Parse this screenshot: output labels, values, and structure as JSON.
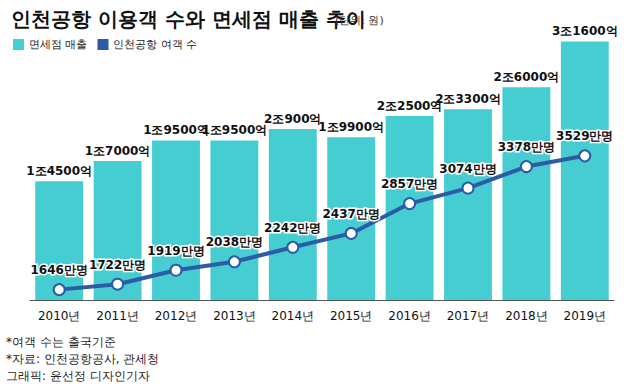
{
  "chart_data": {
    "type": "bar",
    "title": "인천공항 이용객 수와 면세점 매출 추이",
    "subtitle": "(단위: 원)",
    "annotations": [
      "*여객 수는 출국기준",
      "*자료: 인천공항공사, 관세청",
      "그래픽: 윤선정 디자인기자"
    ],
    "categories": [
      "2010년",
      "2011년",
      "2012년",
      "2013년",
      "2014년",
      "2015년",
      "2016년",
      "2017년",
      "2018년",
      "2019년"
    ],
    "series": [
      {
        "name": "면세점 매출",
        "type": "bar",
        "color": "#45cdd2",
        "values": [
          1450000000000,
          1700000000000,
          1950000000000,
          1950000000000,
          2090000000000,
          1990000000000,
          2250000000000,
          2330000000000,
          2600000000000,
          3160000000000
        ],
        "value_labels": [
          "1조4500억",
          "1조7000억",
          "1조9500억",
          "1조9500억",
          "2조900억",
          "1조9900억",
          "2조2500억",
          "2조3300억",
          "2조6000억",
          "3조1600억"
        ]
      },
      {
        "name": "인천공항 여객 수",
        "type": "line",
        "axis": "y2",
        "color": "#2d5ba6",
        "marker": "circle",
        "values": [
          16460000,
          17220000,
          19190000,
          20380000,
          22420000,
          24370000,
          28570000,
          30740000,
          33780000,
          35290000
        ],
        "value_labels": [
          "1646만명",
          "1722만명",
          "1919만명",
          "2038만명",
          "2242만명",
          "2437만명",
          "2857만명",
          "3074만명",
          "3378만명",
          "3529만명"
        ]
      }
    ],
    "ylim": [
      0,
      3300000000000
    ],
    "y2lim": [
      15000000,
      53000000
    ],
    "grid": false,
    "legend": "top-left",
    "data_labels": true,
    "tick_labels": "x"
  }
}
